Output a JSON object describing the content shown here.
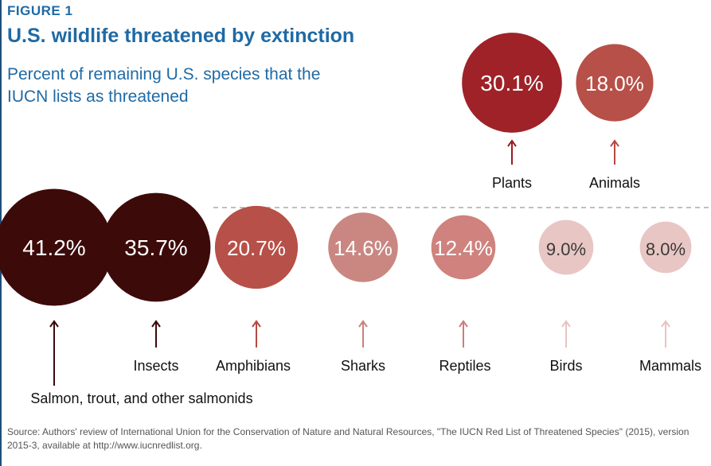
{
  "figure_label": "FIGURE 1",
  "title": "U.S. wildlife threatened by extinction",
  "subtitle": "Percent of remaining U.S. species that the IUCN lists as threatened",
  "source": "Source: Authors' review of International Union for the Conservation of Nature and Natural Resources, \"The IUCN Red List of Threatened Species\" (2015), version 2015-3, available at http://www.iucnredlist.org.",
  "chart_data": {
    "type": "bubble",
    "value_unit": "%",
    "groups": [
      {
        "categories": [
          "Plants",
          "Animals"
        ],
        "values": [
          30.1,
          18.0
        ],
        "labels": [
          "30.1%",
          "18.0%"
        ],
        "colors": [
          "#9b1b21",
          "#b54a42"
        ]
      },
      {
        "categories": [
          "Salmon, trout, and other salmonids",
          "Insects",
          "Amphibians",
          "Sharks",
          "Reptiles",
          "Birds",
          "Mammals"
        ],
        "values": [
          41.2,
          35.7,
          20.7,
          14.6,
          12.4,
          9.0,
          8.0
        ],
        "labels": [
          "41.2%",
          "35.7%",
          "20.7%",
          "14.6%",
          "12.4%",
          "9.0%",
          "8.0%"
        ],
        "colors": [
          "#3d0a0a",
          "#3d0a0a",
          "#b54a42",
          "#c8837e",
          "#cd7e7a",
          "#e7c4c1",
          "#e7c4c1"
        ]
      }
    ]
  }
}
